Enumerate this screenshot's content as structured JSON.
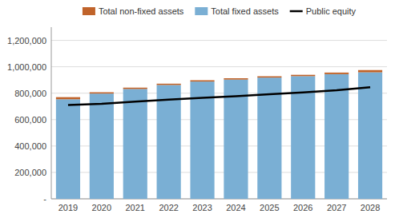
{
  "chart_data": {
    "type": "bar",
    "stacked": true,
    "grid": true,
    "legend": "top",
    "categories": [
      "2019",
      "2020",
      "2021",
      "2022",
      "2023",
      "2024",
      "2025",
      "2026",
      "2027",
      "2028"
    ],
    "series": [
      {
        "name": "Total fixed assets",
        "color": "#7aafd4",
        "values": [
          754000,
          797000,
          832000,
          862000,
          888000,
          903000,
          918000,
          929000,
          944000,
          958000
        ]
      },
      {
        "name": "Total non-fixed assets",
        "color": "#c0632a",
        "values": [
          16000,
          10000,
          10000,
          10000,
          10000,
          10000,
          10000,
          10000,
          12000,
          17000
        ]
      },
      {
        "name": "Public equity",
        "type": "line",
        "color": "#000000",
        "values": [
          710000,
          720000,
          736000,
          751000,
          765000,
          777000,
          792000,
          805000,
          822000,
          845000
        ]
      }
    ],
    "ylim": [
      0,
      1300000
    ],
    "yticks": [
      {
        "value": 0,
        "label": "-"
      },
      {
        "value": 200000,
        "label": "200,000"
      },
      {
        "value": 400000,
        "label": "400,000"
      },
      {
        "value": 600000,
        "label": "600,000"
      },
      {
        "value": 800000,
        "label": "800,000"
      },
      {
        "value": 1000000,
        "label": "1,000,000"
      },
      {
        "value": 1200000,
        "label": "1,200,000"
      }
    ]
  }
}
